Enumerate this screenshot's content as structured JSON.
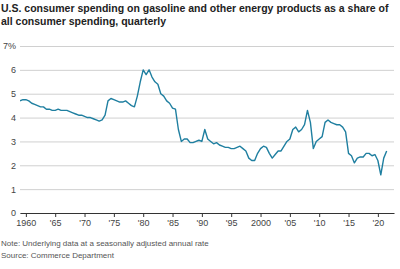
{
  "chart_data": {
    "type": "line",
    "title": "U.S. consumer spending on gasoline and other energy products as a share of all consumer spending, quarterly",
    "note": "Note: Underlying data at a seasonally adjusted annual rate",
    "source": "Source: Commerce Department",
    "color": "#1f7fa0",
    "grid": true,
    "xlim": [
      1959,
      2022.75
    ],
    "xticks": [
      1960,
      {
        "value": 1965,
        "label": "'65"
      },
      {
        "value": 1970,
        "label": "'70"
      },
      {
        "value": 1975,
        "label": "'75"
      },
      {
        "value": 1980,
        "label": "'80"
      },
      {
        "value": 1985,
        "label": "'85"
      },
      {
        "value": 1990,
        "label": "'90"
      },
      {
        "value": 1995,
        "label": "'95"
      },
      2000,
      {
        "value": 2005,
        "label": "'05"
      },
      {
        "value": 2010,
        "label": "'10"
      },
      {
        "value": 2015,
        "label": "'15"
      },
      {
        "value": 2020,
        "label": "'20"
      }
    ],
    "ylim": [
      0,
      7
    ],
    "yticks": [
      0,
      1,
      2,
      3,
      4,
      5,
      6,
      {
        "value": 7,
        "label": "7%"
      }
    ],
    "x": [
      1959,
      1959.5,
      1960,
      1960.5,
      1961,
      1961.5,
      1962,
      1962.5,
      1963,
      1963.5,
      1964,
      1964.5,
      1965,
      1965.5,
      1966,
      1966.5,
      1967,
      1967.5,
      1968,
      1968.5,
      1969,
      1969.5,
      1970,
      1970.5,
      1971,
      1971.5,
      1972,
      1972.5,
      1973,
      1973.5,
      1974,
      1974.5,
      1975,
      1975.5,
      1976,
      1976.5,
      1977,
      1977.5,
      1978,
      1978.5,
      1979,
      1979.5,
      1980,
      1980.5,
      1981,
      1981.5,
      1982,
      1982.5,
      1983,
      1983.5,
      1984,
      1984.5,
      1985,
      1985.5,
      1986,
      1986.5,
      1987,
      1987.5,
      1988,
      1988.5,
      1989,
      1989.5,
      1990,
      1990.5,
      1991,
      1991.5,
      1992,
      1992.5,
      1993,
      1993.5,
      1994,
      1994.5,
      1995,
      1995.5,
      1996,
      1996.5,
      1997,
      1997.5,
      1998,
      1998.5,
      1999,
      1999.5,
      2000,
      2000.5,
      2001,
      2001.5,
      2002,
      2002.5,
      2003,
      2003.5,
      2004,
      2004.5,
      2005,
      2005.5,
      2006,
      2006.5,
      2007,
      2007.5,
      2008,
      2008.5,
      2009,
      2009.5,
      2010,
      2010.5,
      2011,
      2011.5,
      2012,
      2012.5,
      2013,
      2013.5,
      2014,
      2014.5,
      2015,
      2015.5,
      2016,
      2016.5,
      2017,
      2017.5,
      2018,
      2018.5,
      2019,
      2019.5,
      2020,
      2020.5,
      2021,
      2021.5
    ],
    "values": [
      4.7,
      4.75,
      4.75,
      4.7,
      4.6,
      4.55,
      4.5,
      4.45,
      4.45,
      4.35,
      4.35,
      4.3,
      4.3,
      4.35,
      4.3,
      4.3,
      4.3,
      4.25,
      4.2,
      4.15,
      4.1,
      4.1,
      4.05,
      4.0,
      4.0,
      3.95,
      3.9,
      3.85,
      3.9,
      4.1,
      4.7,
      4.8,
      4.75,
      4.7,
      4.65,
      4.65,
      4.7,
      4.6,
      4.5,
      4.45,
      4.9,
      5.5,
      6.0,
      5.8,
      6.0,
      5.7,
      5.5,
      5.4,
      5.0,
      4.9,
      4.7,
      4.6,
      4.4,
      4.35,
      3.5,
      3.0,
      3.1,
      3.1,
      2.95,
      2.95,
      3.0,
      3.05,
      3.0,
      3.5,
      3.1,
      3.0,
      2.9,
      2.95,
      2.85,
      2.8,
      2.75,
      2.75,
      2.7,
      2.7,
      2.75,
      2.8,
      2.7,
      2.6,
      2.3,
      2.2,
      2.2,
      2.5,
      2.7,
      2.8,
      2.75,
      2.5,
      2.3,
      2.45,
      2.6,
      2.6,
      2.8,
      3.0,
      3.1,
      3.5,
      3.6,
      3.4,
      3.5,
      3.7,
      4.3,
      3.8,
      2.7,
      3.0,
      3.1,
      3.2,
      3.8,
      3.9,
      3.8,
      3.75,
      3.7,
      3.7,
      3.6,
      3.4,
      2.5,
      2.4,
      2.1,
      2.3,
      2.35,
      2.35,
      2.5,
      2.5,
      2.4,
      2.45,
      2.2,
      1.6,
      2.3,
      2.6
    ]
  }
}
